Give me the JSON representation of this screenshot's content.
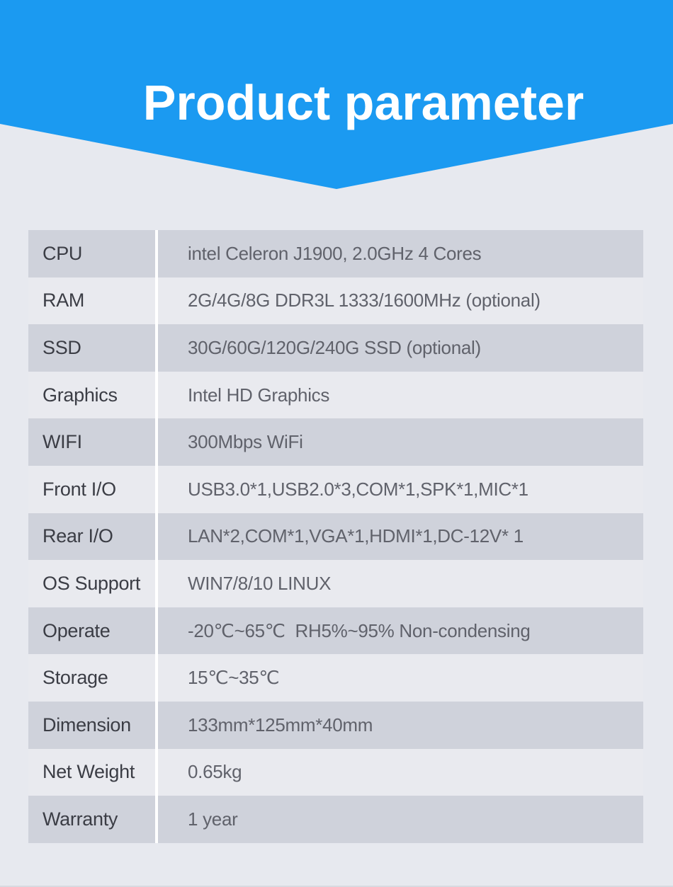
{
  "header": {
    "title": "Product parameter",
    "accent_color": "#1b9af1",
    "title_color": "#ffffff"
  },
  "colors": {
    "page_background": "#e7e9ef",
    "row_dark": "#cfd2db",
    "row_light": "#e9eaef",
    "divider": "#ffffff",
    "label_text": "#3b3d45",
    "value_text": "#60626b"
  },
  "table": {
    "rows": [
      {
        "label": "CPU",
        "value": "intel Celeron J1900, 2.0GHz 4 Cores"
      },
      {
        "label": "RAM",
        "value": "2G/4G/8G DDR3L 1333/1600MHz (optional)"
      },
      {
        "label": "SSD",
        "value": "30G/60G/120G/240G SSD (optional)"
      },
      {
        "label": "Graphics",
        "value": "Intel HD Graphics"
      },
      {
        "label": "WIFI",
        "value": "300Mbps WiFi"
      },
      {
        "label": "Front I/O",
        "value": "USB3.0*1,USB2.0*3,COM*1,SPK*1,MIC*1"
      },
      {
        "label": "Rear I/O",
        "value": "LAN*2,COM*1,VGA*1,HDMI*1,DC-12V* 1"
      },
      {
        "label": "OS Support",
        "value": "WIN7/8/10 LINUX"
      },
      {
        "label": "Operate",
        "value": "-20℃~65℃  RH5%~95% Non-condensing"
      },
      {
        "label": "Storage",
        "value": "15℃~35℃"
      },
      {
        "label": "Dimension",
        "value": "133mm*125mm*40mm"
      },
      {
        "label": "Net Weight",
        "value": "0.65kg"
      },
      {
        "label": "Warranty",
        "value": "1 year"
      }
    ]
  }
}
